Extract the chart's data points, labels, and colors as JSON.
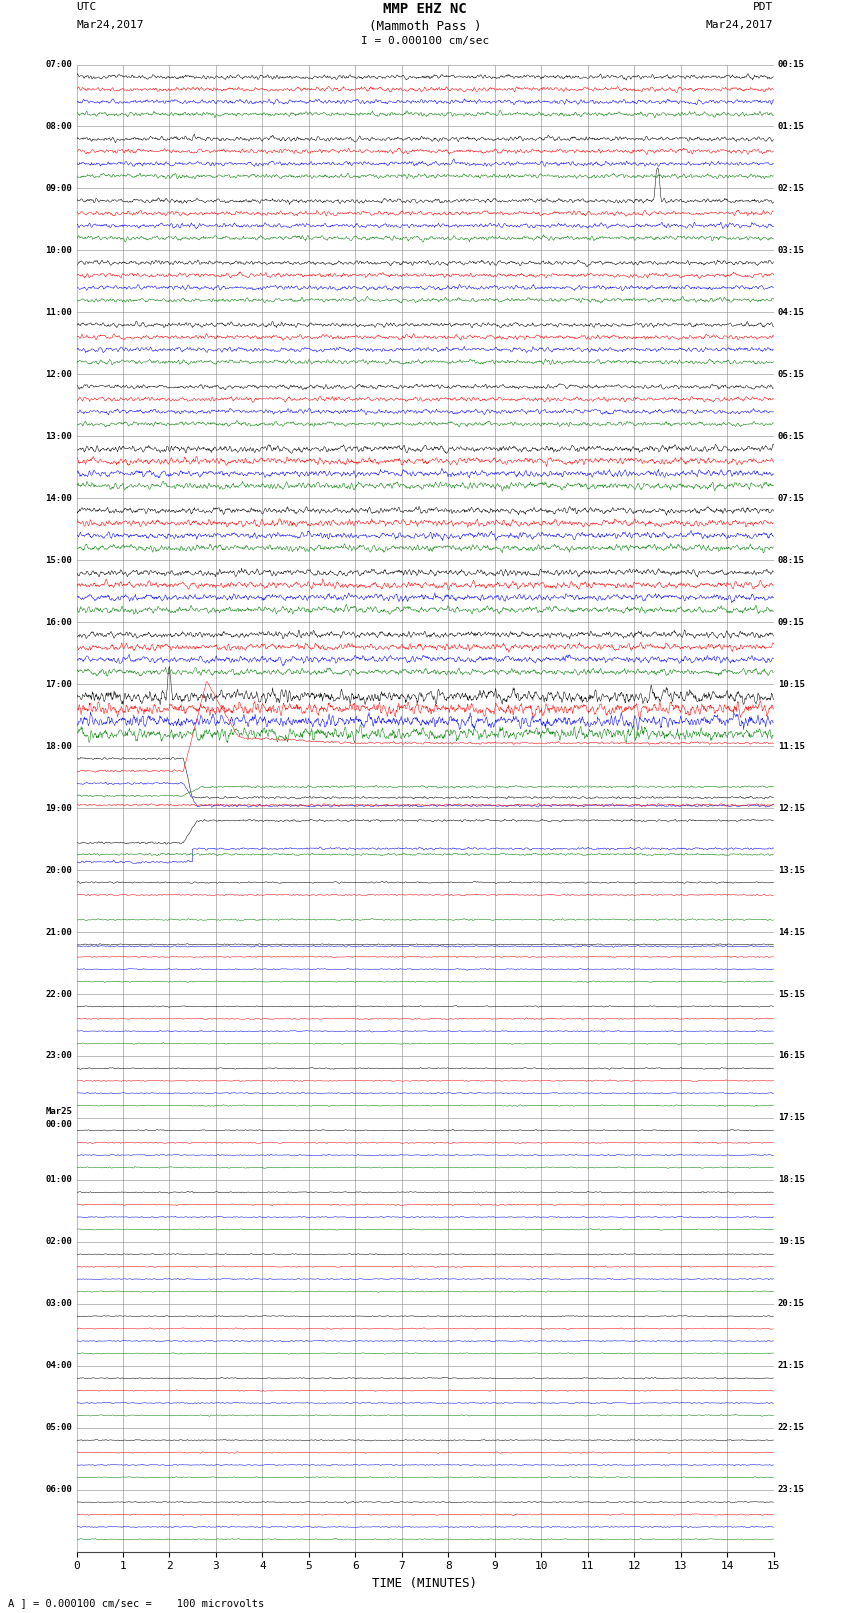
{
  "title_line1": "MMP EHZ NC",
  "title_line2": "(Mammoth Pass )",
  "title_line3": "I = 0.000100 cm/sec",
  "left_header_line1": "UTC",
  "left_header_line2": "Mar24,2017",
  "right_header_line1": "PDT",
  "right_header_line2": "Mar24,2017",
  "xlabel": "TIME (MINUTES)",
  "footer": "A ] = 0.000100 cm/sec =    100 microvolts",
  "utc_labels": [
    "07:00",
    "08:00",
    "09:00",
    "10:00",
    "11:00",
    "12:00",
    "13:00",
    "14:00",
    "15:00",
    "16:00",
    "17:00",
    "18:00",
    "19:00",
    "20:00",
    "21:00",
    "22:00",
    "23:00",
    "Mar25\n00:00",
    "01:00",
    "02:00",
    "03:00",
    "04:00",
    "05:00",
    "06:00"
  ],
  "pdt_labels": [
    "00:15",
    "01:15",
    "02:15",
    "03:15",
    "04:15",
    "05:15",
    "06:15",
    "07:15",
    "08:15",
    "09:15",
    "10:15",
    "11:15",
    "12:15",
    "13:15",
    "14:15",
    "15:15",
    "16:15",
    "17:15",
    "18:15",
    "19:15",
    "20:15",
    "21:15",
    "22:15",
    "23:15"
  ],
  "n_rows": 24,
  "n_traces_per_row": 4,
  "trace_colors": [
    "black",
    "red",
    "blue",
    "green"
  ],
  "bg_color": "white",
  "grid_color": "#888888",
  "figsize": [
    8.5,
    16.13
  ],
  "dpi": 100,
  "x_ticks": [
    0,
    1,
    2,
    3,
    4,
    5,
    6,
    7,
    8,
    9,
    10,
    11,
    12,
    13,
    14,
    15
  ],
  "x_min": 0,
  "x_max": 15
}
